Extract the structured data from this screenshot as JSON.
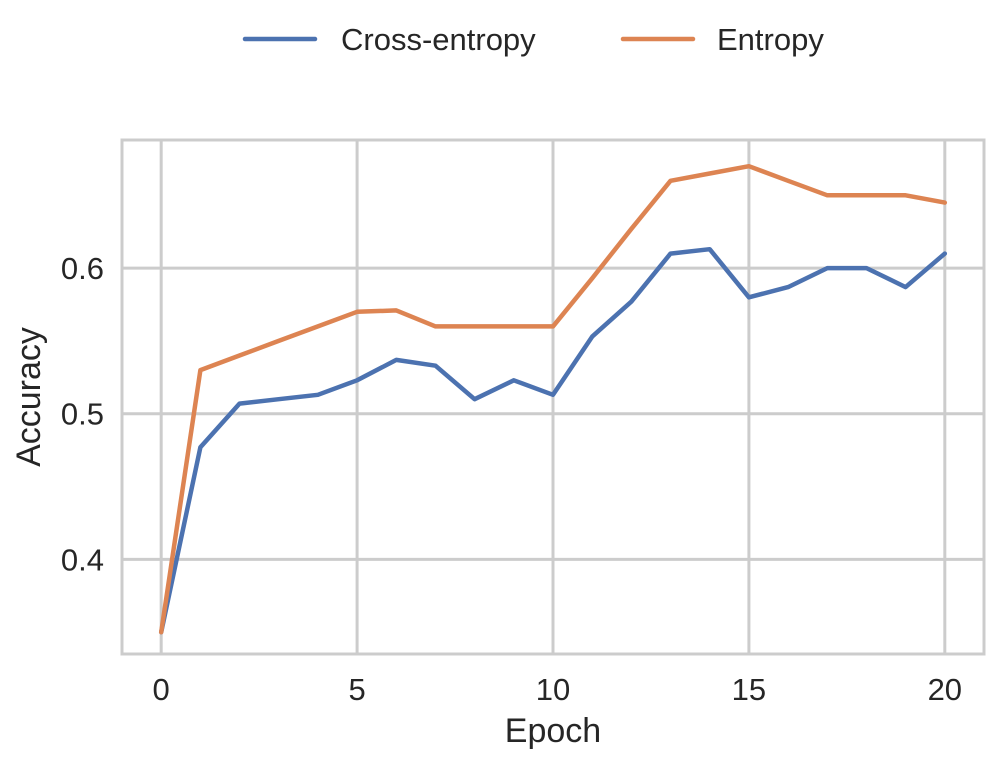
{
  "chart_data": {
    "type": "line",
    "xlabel": "Epoch",
    "ylabel": "Accuracy",
    "xlim": [
      -1,
      21
    ],
    "ylim": [
      0.335,
      0.688
    ],
    "x_ticks": [
      0,
      5,
      10,
      15,
      20
    ],
    "y_ticks": [
      0.4,
      0.5,
      0.6
    ],
    "y_tick_labels": [
      "0.4",
      "0.5",
      "0.6"
    ],
    "grid": true,
    "legend_position": "top-center",
    "x": [
      0,
      1,
      2,
      3,
      4,
      5,
      6,
      7,
      8,
      9,
      10,
      11,
      12,
      13,
      14,
      15,
      16,
      17,
      18,
      19,
      20
    ],
    "series": [
      {
        "name": "Cross-entropy",
        "color": "#4c72b0",
        "values": [
          0.35,
          0.477,
          0.507,
          0.51,
          0.513,
          0.523,
          0.537,
          0.533,
          0.51,
          0.523,
          0.513,
          0.553,
          0.577,
          0.61,
          0.613,
          0.58,
          0.587,
          0.6,
          0.6,
          0.587,
          0.61
        ]
      },
      {
        "name": "Entropy",
        "color": "#dd8452",
        "values": [
          0.35,
          0.53,
          0.54,
          0.55,
          0.56,
          0.57,
          0.571,
          0.56,
          0.56,
          0.56,
          0.56,
          0.593,
          0.627,
          0.66,
          0.665,
          0.67,
          0.66,
          0.65,
          0.65,
          0.65,
          0.645
        ]
      }
    ]
  }
}
